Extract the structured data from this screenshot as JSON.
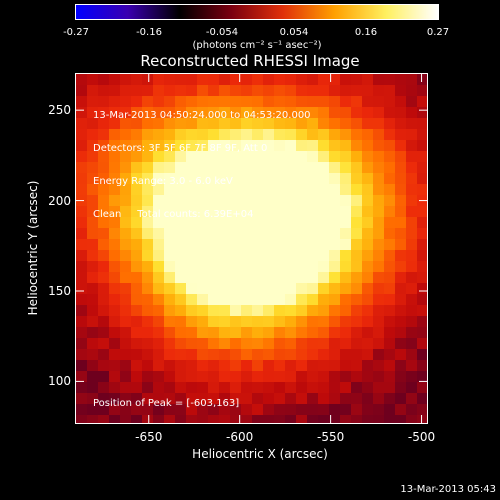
{
  "colorbar": {
    "ticks": [
      "-0.27",
      "-0.16",
      "-0.054",
      "0.054",
      "0.16",
      "0.27"
    ],
    "unit_label": "(photons cm⁻² s⁻¹ asec⁻²)",
    "colors": [
      "#0000ff",
      "#3a00b0",
      "#000000",
      "#7a0010",
      "#e0300a",
      "#ffa000",
      "#fff060",
      "#ffffff"
    ]
  },
  "plot": {
    "title": "Reconstructed RHESSI Image",
    "info_lines": [
      "13-Mar-2013 04:50:24.000 to 04:53:20.000",
      "Detectors: 3F 5F 6F 7F 8F 9F, Att 0",
      "Energy Range: 3.0 - 6.0 keV",
      "Clean     Total counts: 6.39E+04"
    ],
    "peak_label": "Position of Peak = [-603,163]",
    "footer_date": "13-Mar-2013 05:43"
  },
  "chart_data": {
    "type": "heatmap",
    "title": "Reconstructed RHESSI Image",
    "xlabel": "Heliocentric X (arcsec)",
    "ylabel": "Heliocentric Y (arcsec)",
    "xlim": [
      -690,
      -497
    ],
    "ylim": [
      77,
      270
    ],
    "x_ticks": [
      "-650",
      "-600",
      "-550",
      "-500"
    ],
    "y_ticks": [
      "100",
      "150",
      "200",
      "250"
    ],
    "x_tick_values": [
      -650,
      -600,
      -550,
      -500
    ],
    "y_tick_values": [
      100,
      150,
      200,
      250
    ],
    "colorbar_range": [
      -0.27,
      0.27
    ],
    "peak": [
      -603,
      163
    ],
    "sources": [
      {
        "x": -603,
        "y": 163,
        "intensity": 0.27
      },
      {
        "x": -597,
        "y": 198,
        "intensity": 0.22
      },
      {
        "x": -648,
        "y": 212,
        "intensity": 0.17
      },
      {
        "x": -560,
        "y": 210,
        "intensity": 0.15
      },
      {
        "x": -548,
        "y": 185,
        "intensity": 0.12
      }
    ]
  }
}
